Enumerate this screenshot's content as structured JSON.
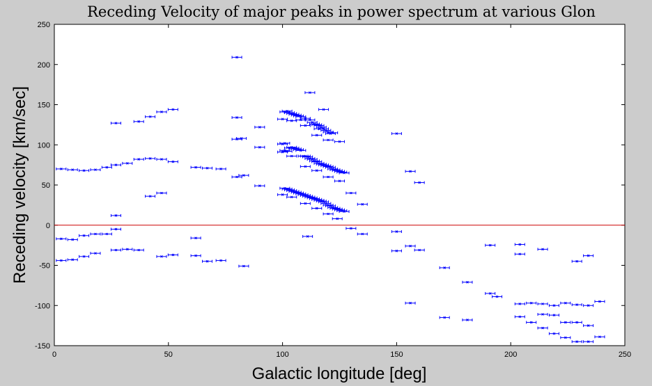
{
  "chart_data": {
    "type": "scatter",
    "title": "Receding Velocity of major peaks in power spectrum at various Glon",
    "xlabel": "Galactic longitude [deg]",
    "ylabel": "Receding velocity [km/sec]",
    "xlim": [
      0,
      250
    ],
    "ylim": [
      -150,
      250
    ],
    "xticks": [
      "0",
      "50",
      "100",
      "150",
      "200",
      "250"
    ],
    "yticks": [
      "-150",
      "-100",
      "-50",
      "0",
      "50",
      "100",
      "150",
      "200",
      "250"
    ],
    "grid": false,
    "marker_color": "#0000ff",
    "reference_line": {
      "y": 0,
      "color": "#cc0000"
    },
    "series": [
      {
        "points": [
          [
            3,
            70
          ],
          [
            8,
            69
          ],
          [
            13,
            68
          ],
          [
            18,
            69
          ],
          [
            23,
            72
          ],
          [
            27,
            75
          ],
          [
            32,
            77
          ],
          [
            37,
            82
          ],
          [
            42,
            83
          ],
          [
            47,
            82
          ],
          [
            52,
            79
          ],
          [
            62,
            72
          ],
          [
            67,
            71
          ],
          [
            73,
            70
          ],
          [
            80,
            60
          ],
          [
            83,
            62
          ],
          [
            3,
            -17
          ],
          [
            8,
            -18
          ],
          [
            13,
            -13
          ],
          [
            18,
            -11
          ],
          [
            23,
            -11
          ],
          [
            27,
            -5
          ],
          [
            3,
            -44
          ],
          [
            8,
            -43
          ],
          [
            13,
            -39
          ],
          [
            18,
            -35
          ],
          [
            27,
            -31
          ],
          [
            32,
            -30
          ],
          [
            37,
            -31
          ],
          [
            47,
            -39
          ],
          [
            52,
            -37
          ],
          [
            62,
            -38
          ],
          [
            67,
            -45
          ],
          [
            73,
            -44
          ],
          [
            83,
            -51
          ],
          [
            62,
            -16
          ],
          [
            27,
            127
          ],
          [
            37,
            129
          ],
          [
            42,
            135
          ],
          [
            47,
            141
          ],
          [
            52,
            144
          ],
          [
            27,
            12
          ],
          [
            42,
            36
          ],
          [
            47,
            40
          ],
          [
            80,
            209
          ],
          [
            80,
            134
          ],
          [
            80,
            107
          ],
          [
            82,
            108
          ],
          [
            90,
            122
          ],
          [
            90,
            97
          ],
          [
            90,
            49
          ],
          [
            100,
            132
          ],
          [
            101,
            141
          ],
          [
            102,
            142
          ],
          [
            103,
            140
          ],
          [
            104,
            139
          ],
          [
            105,
            138
          ],
          [
            106,
            137
          ],
          [
            107,
            136
          ],
          [
            108,
            135
          ],
          [
            110,
            133
          ],
          [
            112,
            131
          ],
          [
            113,
            128
          ],
          [
            114,
            126
          ],
          [
            115,
            125
          ],
          [
            116,
            124
          ],
          [
            117,
            122
          ],
          [
            118,
            120
          ],
          [
            119,
            118
          ],
          [
            120,
            116
          ],
          [
            121,
            114
          ],
          [
            122,
            115
          ],
          [
            104,
            130
          ],
          [
            108,
            131
          ],
          [
            110,
            124
          ],
          [
            116,
            120
          ],
          [
            118,
            144
          ],
          [
            112,
            165
          ],
          [
            115,
            112
          ],
          [
            120,
            106
          ],
          [
            125,
            104
          ],
          [
            100,
            91
          ],
          [
            101,
            93
          ],
          [
            102,
            92
          ],
          [
            103,
            96
          ],
          [
            104,
            97
          ],
          [
            105,
            96
          ],
          [
            106,
            95
          ],
          [
            107,
            94
          ],
          [
            108,
            93
          ],
          [
            109,
            86
          ],
          [
            110,
            86
          ],
          [
            111,
            85
          ],
          [
            112,
            83
          ],
          [
            113,
            82
          ],
          [
            114,
            80
          ],
          [
            115,
            79
          ],
          [
            116,
            77
          ],
          [
            117,
            76
          ],
          [
            118,
            75
          ],
          [
            119,
            74
          ],
          [
            120,
            73
          ],
          [
            121,
            72
          ],
          [
            122,
            70
          ],
          [
            123,
            69
          ],
          [
            124,
            68
          ],
          [
            125,
            67
          ],
          [
            126,
            66
          ],
          [
            127,
            65
          ],
          [
            100,
            101
          ],
          [
            101,
            102
          ],
          [
            104,
            86
          ],
          [
            110,
            73
          ],
          [
            115,
            68
          ],
          [
            120,
            60
          ],
          [
            125,
            55
          ],
          [
            100,
            38
          ],
          [
            101,
            46
          ],
          [
            102,
            45
          ],
          [
            103,
            44
          ],
          [
            104,
            43
          ],
          [
            105,
            42
          ],
          [
            106,
            41
          ],
          [
            107,
            40
          ],
          [
            108,
            39
          ],
          [
            109,
            38
          ],
          [
            110,
            37
          ],
          [
            111,
            36
          ],
          [
            112,
            35
          ],
          [
            113,
            34
          ],
          [
            114,
            33
          ],
          [
            115,
            32
          ],
          [
            116,
            31
          ],
          [
            117,
            30
          ],
          [
            118,
            29
          ],
          [
            119,
            27
          ],
          [
            120,
            25
          ],
          [
            121,
            24
          ],
          [
            122,
            22
          ],
          [
            123,
            21
          ],
          [
            124,
            20
          ],
          [
            125,
            19
          ],
          [
            126,
            18
          ],
          [
            127,
            17
          ],
          [
            104,
            35
          ],
          [
            110,
            27
          ],
          [
            115,
            21
          ],
          [
            120,
            14
          ],
          [
            124,
            8
          ],
          [
            111,
            -14
          ],
          [
            130,
            40
          ],
          [
            130,
            -4
          ],
          [
            135,
            26
          ],
          [
            135,
            -11
          ],
          [
            150,
            114
          ],
          [
            150,
            -8
          ],
          [
            150,
            -32
          ],
          [
            156,
            67
          ],
          [
            156,
            -26
          ],
          [
            156,
            -97
          ],
          [
            160,
            53
          ],
          [
            160,
            -31
          ],
          [
            171,
            -53
          ],
          [
            171,
            -115
          ],
          [
            181,
            -71
          ],
          [
            181,
            -118
          ],
          [
            191,
            -25
          ],
          [
            191,
            -85
          ],
          [
            194,
            -89
          ],
          [
            204,
            -24
          ],
          [
            204,
            -36
          ],
          [
            204,
            -98
          ],
          [
            204,
            -114
          ],
          [
            209,
            -97
          ],
          [
            209,
            -121
          ],
          [
            214,
            -98
          ],
          [
            214,
            -111
          ],
          [
            214,
            -128
          ],
          [
            214,
            -30
          ],
          [
            219,
            -100
          ],
          [
            219,
            -112
          ],
          [
            219,
            -135
          ],
          [
            224,
            -97
          ],
          [
            224,
            -121
          ],
          [
            224,
            -140
          ],
          [
            229,
            -99
          ],
          [
            229,
            -121
          ],
          [
            229,
            -145
          ],
          [
            229,
            -45
          ],
          [
            234,
            -100
          ],
          [
            234,
            -125
          ],
          [
            234,
            -145
          ],
          [
            234,
            -38
          ],
          [
            239,
            -95
          ],
          [
            239,
            -139
          ]
        ]
      }
    ]
  }
}
